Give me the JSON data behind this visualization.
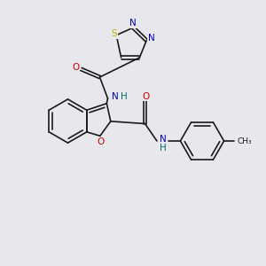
{
  "background_color": "#e8e8ec",
  "bond_color": "#1a1a1a",
  "N_color": "#0000cc",
  "O_color": "#cc0000",
  "S_color": "#b8b800",
  "H_color": "#007070",
  "font_size": 7.0,
  "bond_width": 1.2,
  "figsize": [
    3.0,
    3.0
  ],
  "dpi": 100,
  "xlim": [
    0,
    10
  ],
  "ylim": [
    0,
    10
  ]
}
